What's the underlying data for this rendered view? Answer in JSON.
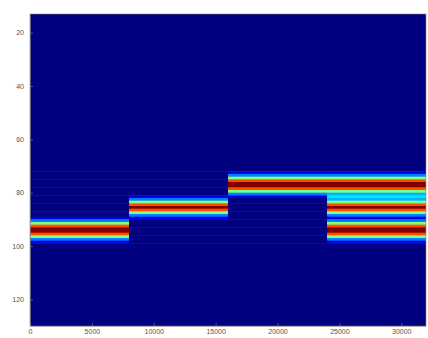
{
  "chart_data": {
    "type": "heatmap",
    "x_edges": [
      0,
      8000,
      16000,
      24000,
      32000
    ],
    "y_edges": [
      13,
      70,
      71,
      72,
      73,
      74,
      75,
      76,
      77,
      78,
      79,
      80,
      81,
      82,
      83,
      84,
      85,
      86,
      87,
      88,
      89,
      90,
      91,
      92,
      93,
      94,
      95,
      96,
      97,
      98,
      99,
      100,
      130
    ],
    "cells": [
      [
        0,
        0,
        0,
        0
      ],
      [
        0,
        0,
        0,
        0
      ],
      [
        0,
        0,
        0,
        0
      ],
      [
        0,
        0,
        0.1,
        0.1
      ],
      [
        0,
        0,
        0.25,
        0.25
      ],
      [
        0,
        0,
        0.5,
        0.5
      ],
      [
        0,
        0,
        0.8,
        0.8
      ],
      [
        0,
        0,
        1,
        1
      ],
      [
        0,
        0,
        1,
        1
      ],
      [
        0,
        0,
        0.8,
        0.8
      ],
      [
        0,
        0,
        0.5,
        0.5
      ],
      [
        0,
        0,
        0.25,
        0.3
      ],
      [
        0,
        0.1,
        0.1,
        0.35
      ],
      [
        0,
        0.25,
        0,
        0.3
      ],
      [
        0,
        0.5,
        0,
        0.5
      ],
      [
        0,
        0.8,
        0,
        0.8
      ],
      [
        0,
        1,
        0,
        1
      ],
      [
        0,
        0.8,
        0,
        0.8
      ],
      [
        0,
        0.5,
        0,
        0.5
      ],
      [
        0,
        0.25,
        0,
        0.25
      ],
      [
        0.1,
        0.1,
        0,
        0.1
      ],
      [
        0.25,
        0,
        0,
        0.25
      ],
      [
        0.5,
        0,
        0,
        0.5
      ],
      [
        0.8,
        0,
        0,
        0.8
      ],
      [
        1,
        0,
        0,
        1
      ],
      [
        1,
        0,
        0,
        1
      ],
      [
        0.8,
        0,
        0,
        0.8
      ],
      [
        0.5,
        0,
        0,
        0.5
      ],
      [
        0.25,
        0,
        0,
        0.25
      ],
      [
        0.1,
        0,
        0,
        0.1
      ],
      [
        0,
        0,
        0,
        0
      ],
      [
        0,
        0,
        0,
        0
      ]
    ],
    "xlim": [
      0,
      32000
    ],
    "xticks": [
      0,
      5000,
      10000,
      15000,
      20000,
      25000,
      30000
    ],
    "ylim": [
      130,
      13
    ],
    "yticks": [
      20,
      40,
      60,
      80,
      100,
      120
    ]
  }
}
